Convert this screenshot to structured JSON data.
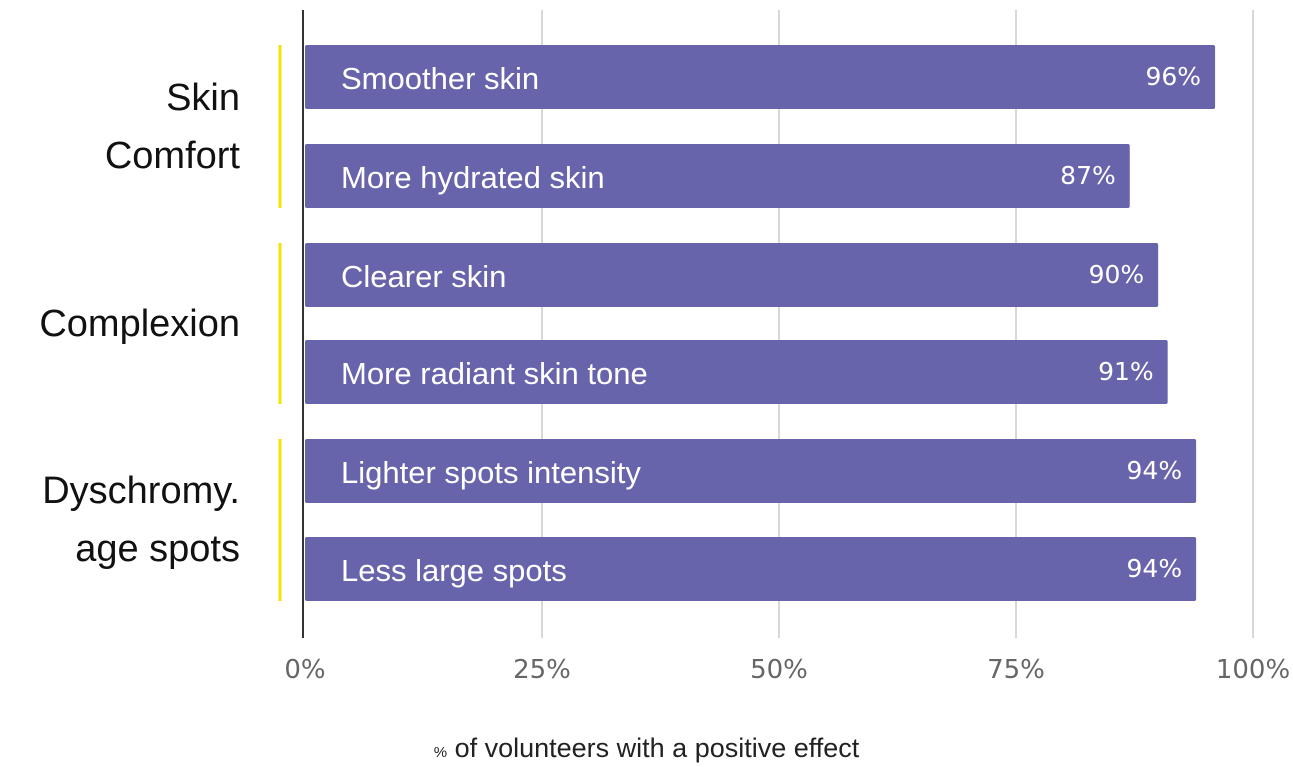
{
  "chart_data": {
    "type": "bar",
    "orientation": "horizontal",
    "groups": [
      {
        "label_lines": [
          "Skin",
          "Comfort"
        ],
        "categories": [
          "Smoother skin",
          "More hydrated skin"
        ],
        "values": [
          96,
          87
        ]
      },
      {
        "label_lines": [
          "Complexion"
        ],
        "categories": [
          "Clearer skin",
          "More radiant skin tone"
        ],
        "values": [
          90,
          91
        ]
      },
      {
        "label_lines": [
          "Dyschromy.",
          "age spots"
        ],
        "categories": [
          "Lighter spots intensity",
          "Less large spots"
        ],
        "values": [
          94,
          94
        ]
      }
    ],
    "value_labels": [
      "96%",
      "87%",
      "90%",
      "91%",
      "94%",
      "94%"
    ],
    "xlim": [
      0,
      100
    ],
    "xticks": [
      0,
      25,
      50,
      75,
      100
    ],
    "xtick_labels": [
      "0%",
      "25%",
      "50%",
      "75%",
      "100%"
    ],
    "xlabel_prefix": "%",
    "xlabel": "of volunteers with a positive effect",
    "grid": true,
    "colors": {
      "bar": "#6764ab",
      "group_marker": "#f2e600",
      "grid": "#d8d8d8",
      "axis": "#333333",
      "tick_text": "#666666"
    }
  }
}
